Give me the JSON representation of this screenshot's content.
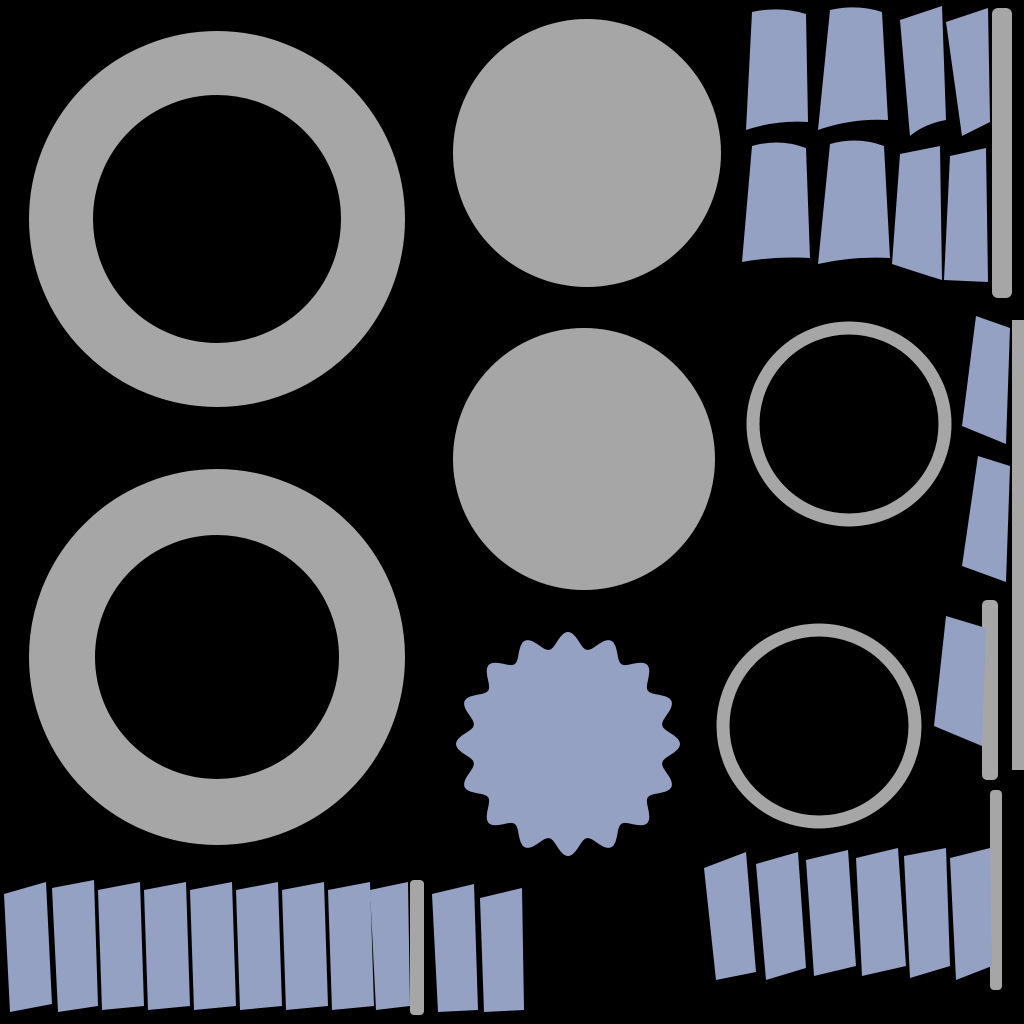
{
  "colors": {
    "background": "#000000",
    "gray": "#a6a6a6",
    "blue": "#94a1c3"
  },
  "icons": {
    "large_ring": "ring-shape",
    "disc": "disc-shape",
    "thin_ring": "thin-ring-shape",
    "scalloped_disc": "scalloped-disc-shape",
    "tread_block": "tread-block-shape",
    "divider_strip": "strip-shape"
  }
}
